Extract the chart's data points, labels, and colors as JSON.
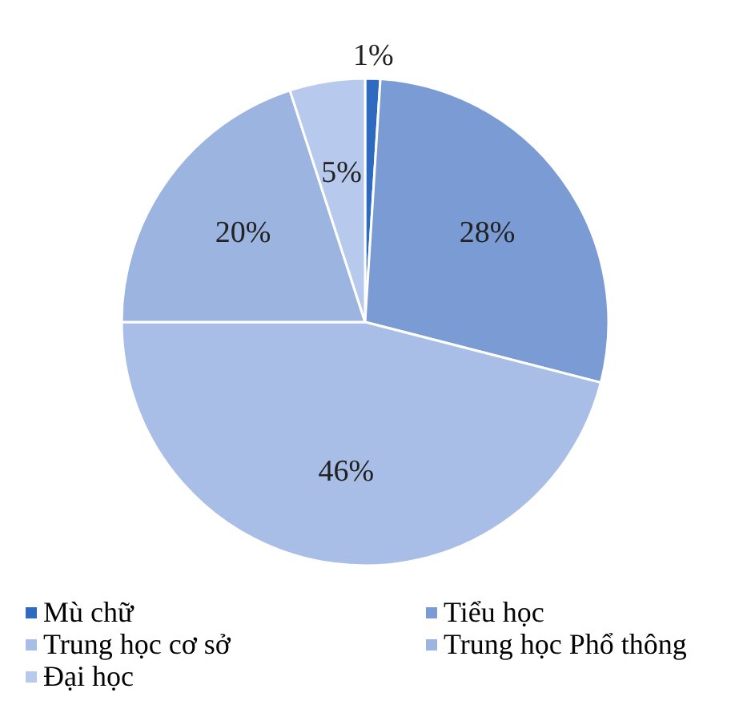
{
  "chart_data": {
    "type": "pie",
    "categories": [
      "Mù chữ",
      "Tiểu học",
      "Trung học cơ sở",
      "Trung học Phổ thông",
      "Đại học"
    ],
    "values": [
      1,
      28,
      46,
      20,
      5
    ],
    "value_labels": [
      "1%",
      "28%",
      "46%",
      "20%",
      "5%"
    ],
    "colors": [
      "#2e6bc0",
      "#7b9bd4",
      "#a9bee6",
      "#9bb4e0",
      "#b7c9ec"
    ],
    "legend": "bottom"
  }
}
